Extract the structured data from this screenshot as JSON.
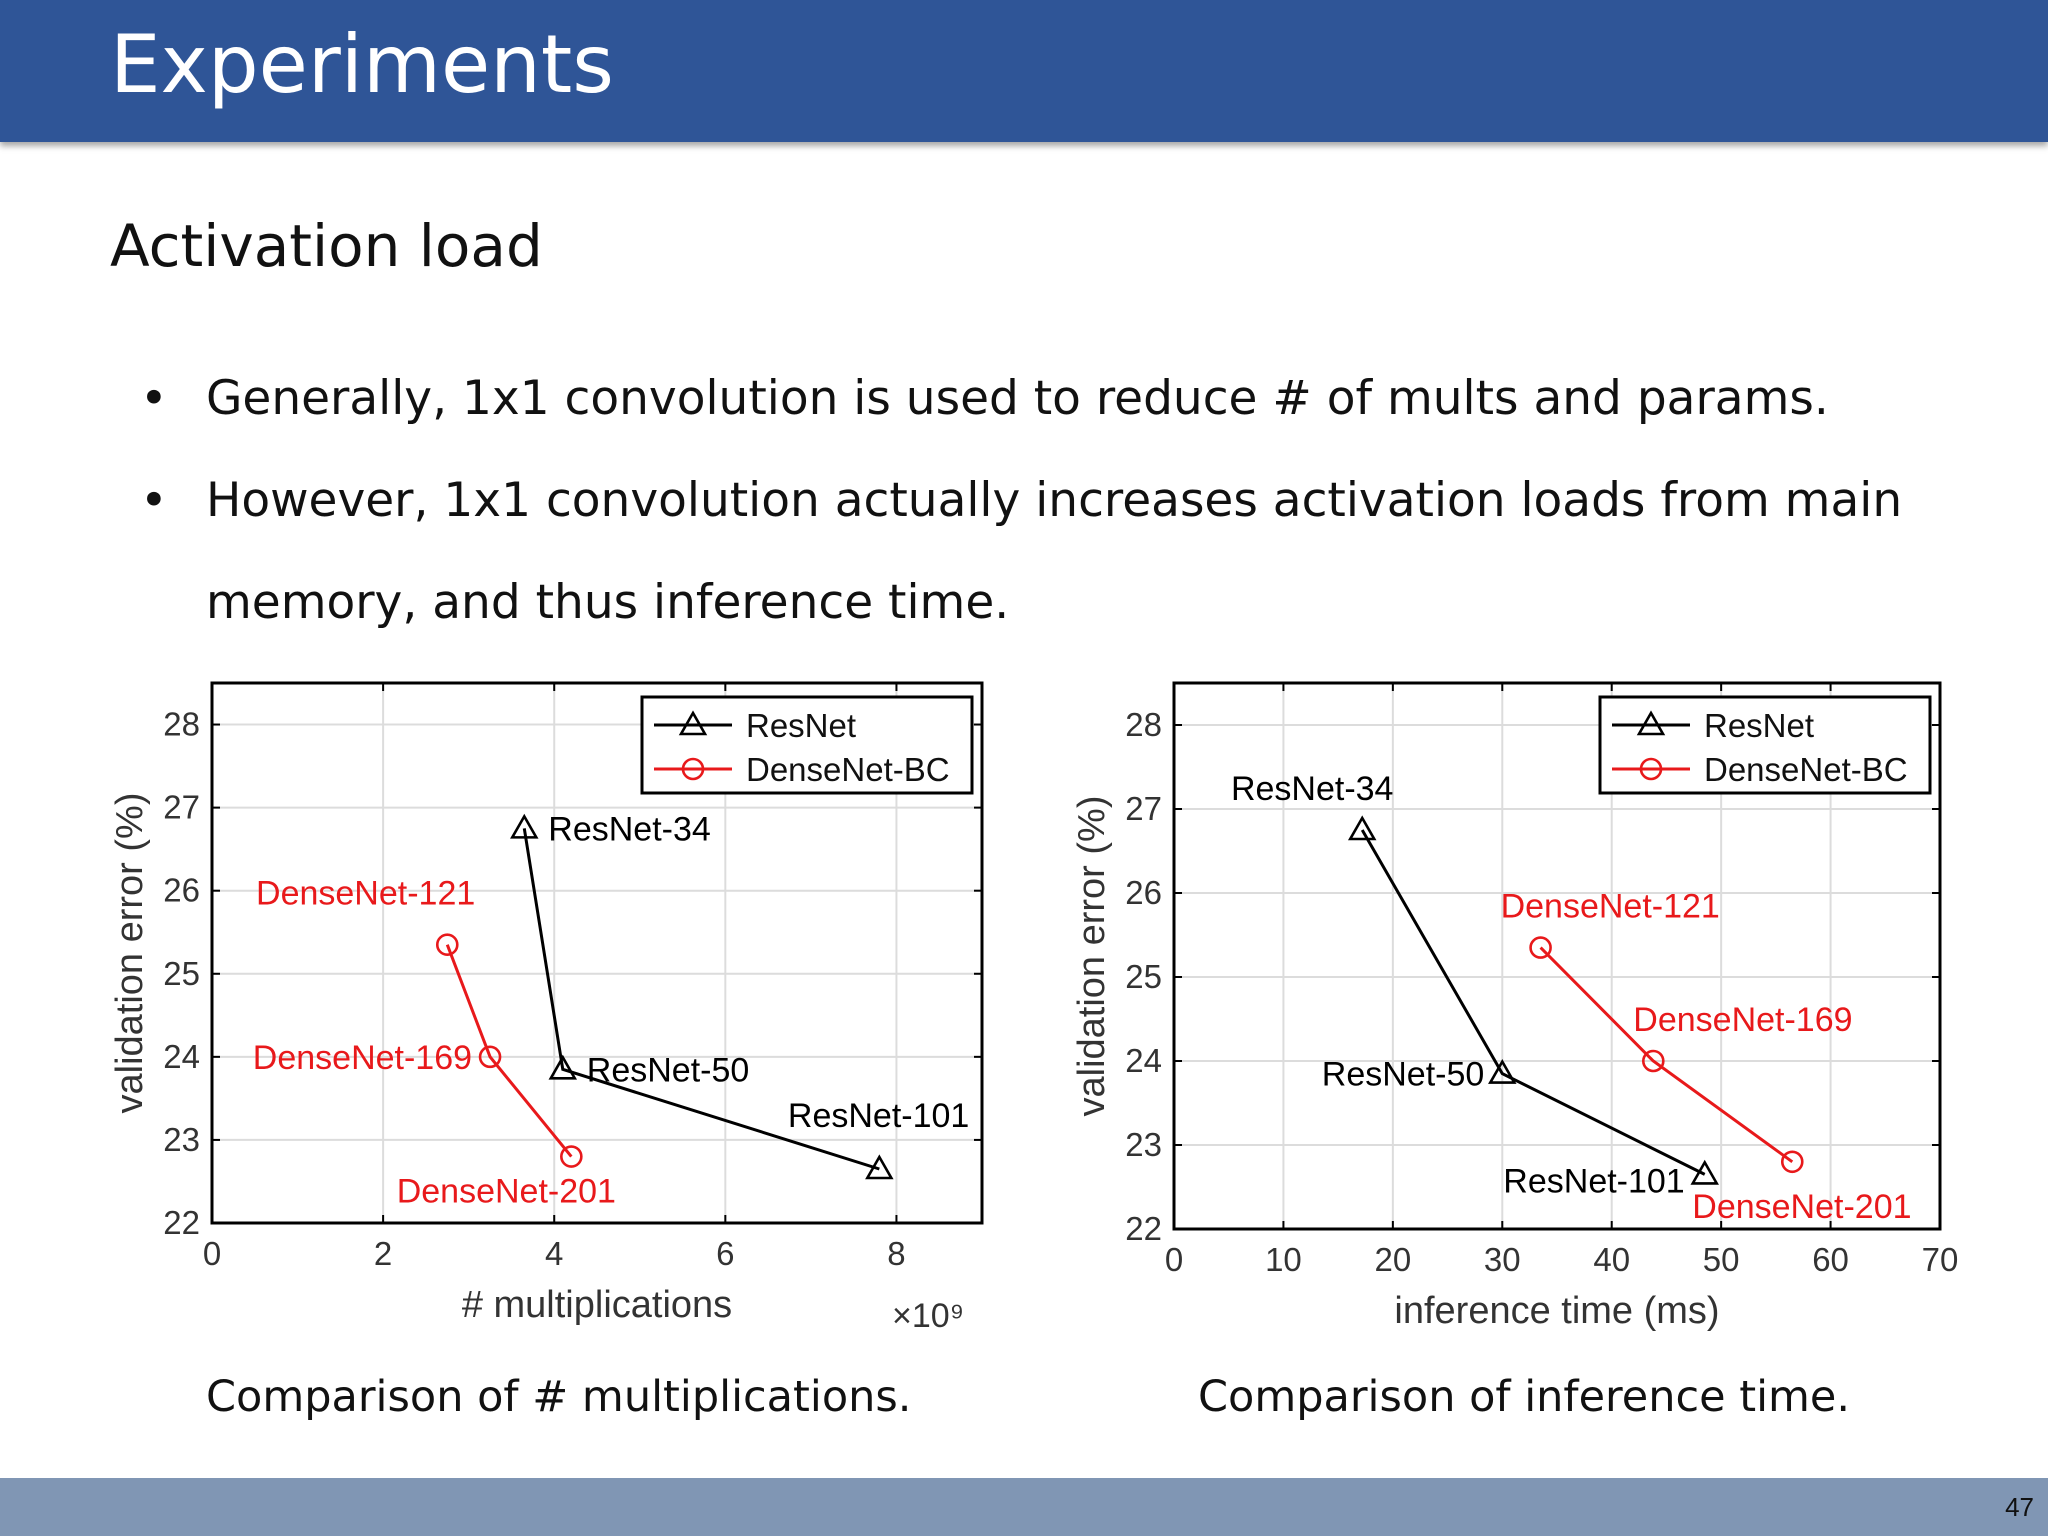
{
  "title": "Experiments",
  "subtitle": "Activation load",
  "bullets": [
    "Generally, 1x1 convolution is used to reduce # of mults and params.",
    "However, 1x1 convolution actually increases activation loads from main memory, and thus inference time."
  ],
  "bullet_symbol": "•",
  "captions": {
    "mult": "Comparison of # multiplications.",
    "time": "Comparison of inference time."
  },
  "page_number": "47",
  "colors": {
    "header": "#2F5597",
    "footer": "#8096B4",
    "resnet": "#000000",
    "densenet": "#E8191B"
  },
  "chart_data": [
    {
      "type": "line",
      "title": "",
      "xlabel": "# multiplications",
      "x_multiplier": "×10⁹",
      "ylabel": "validation error (%)",
      "xlim": [
        0,
        9
      ],
      "ylim": [
        22,
        28.5
      ],
      "xticks": [
        0,
        2,
        4,
        6,
        8
      ],
      "yticks": [
        22,
        23,
        24,
        25,
        26,
        27,
        28
      ],
      "grid": true,
      "legend_position": "top-right",
      "series": [
        {
          "name": "ResNet",
          "marker": "triangle",
          "color": "#000000",
          "points": [
            {
              "x": 3.65,
              "y": 26.75,
              "label": "ResNet-34",
              "label_pos": "right"
            },
            {
              "x": 4.1,
              "y": 23.85,
              "label": "ResNet-50",
              "label_pos": "right"
            },
            {
              "x": 7.8,
              "y": 22.65,
              "label": "ResNet-101",
              "label_pos": "above-left"
            }
          ]
        },
        {
          "name": "DenseNet-BC",
          "marker": "circle",
          "color": "#E8191B",
          "points": [
            {
              "x": 2.75,
              "y": 25.35,
              "label": "DenseNet-121",
              "label_pos": "above-left"
            },
            {
              "x": 3.25,
              "y": 24.0,
              "label": "DenseNet-169",
              "label_pos": "left"
            },
            {
              "x": 4.2,
              "y": 22.8,
              "label": "DenseNet-201",
              "label_pos": "below"
            }
          ]
        }
      ]
    },
    {
      "type": "line",
      "title": "",
      "xlabel": "inference time (ms)",
      "ylabel": "validation error (%)",
      "xlim": [
        0,
        70
      ],
      "ylim": [
        22,
        28.5
      ],
      "xticks": [
        0,
        10,
        20,
        30,
        40,
        50,
        60,
        70
      ],
      "yticks": [
        22,
        23,
        24,
        25,
        26,
        27,
        28
      ],
      "grid": true,
      "legend_position": "top-right",
      "series": [
        {
          "name": "ResNet",
          "marker": "triangle",
          "color": "#000000",
          "points": [
            {
              "x": 17.2,
              "y": 26.75,
              "label": "ResNet-34",
              "label_pos": "above"
            },
            {
              "x": 30.0,
              "y": 23.85,
              "label": "ResNet-50",
              "label_pos": "left"
            },
            {
              "x": 48.5,
              "y": 22.65,
              "label": "ResNet-101",
              "label_pos": "left"
            }
          ]
        },
        {
          "name": "DenseNet-BC",
          "marker": "circle",
          "color": "#E8191B",
          "points": [
            {
              "x": 33.5,
              "y": 25.35,
              "label": "DenseNet-121",
              "label_pos": "above"
            },
            {
              "x": 43.8,
              "y": 24.0,
              "label": "DenseNet-169",
              "label_pos": "above-right"
            },
            {
              "x": 56.5,
              "y": 22.8,
              "label": "DenseNet-201",
              "label_pos": "below"
            }
          ]
        }
      ]
    }
  ]
}
